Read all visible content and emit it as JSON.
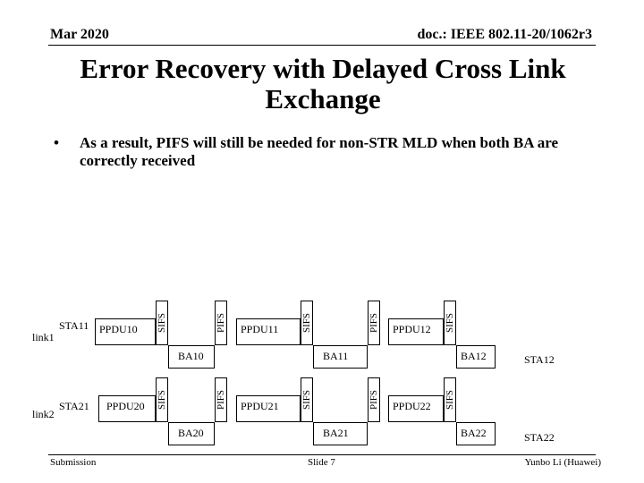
{
  "header": {
    "date": "Mar 2020",
    "doc": "doc.: IEEE 802.11-20/1062r3"
  },
  "title": "Error Recovery with Delayed Cross Link Exchange",
  "bullet": {
    "symbol": "•",
    "text": "As a result, PIFS will still be needed for non-STR MLD when both BA are correctly received"
  },
  "diagram": {
    "link1": {
      "name": "link1",
      "station": "STA11",
      "ppdus": [
        "PPDU10",
        "PPDU11",
        "PPDU12"
      ],
      "bas": [
        "BA10",
        "BA11",
        "BA12"
      ],
      "peer": "STA12"
    },
    "link2": {
      "name": "link2",
      "station": "STA21",
      "ppdus": [
        "PPDU20",
        "PPDU21",
        "PPDU22"
      ],
      "bas": [
        "BA20",
        "BA21",
        "BA22"
      ],
      "peer": "STA22"
    },
    "sifs": "SIFS",
    "pifs": "PIFS"
  },
  "footer": {
    "left": "Submission",
    "center": "Slide 7",
    "right": "Yunbo Li (Huawei)"
  }
}
